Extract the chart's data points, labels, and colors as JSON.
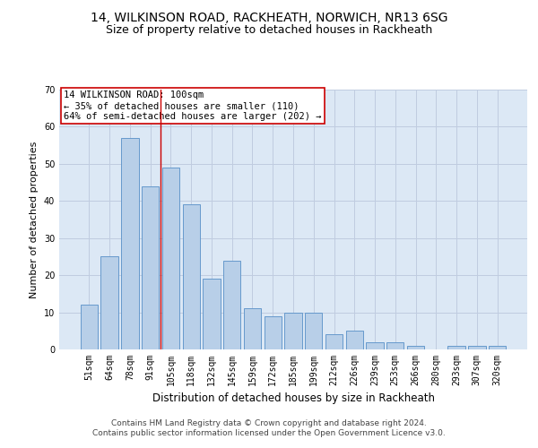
{
  "title": "14, WILKINSON ROAD, RACKHEATH, NORWICH, NR13 6SG",
  "subtitle": "Size of property relative to detached houses in Rackheath",
  "xlabel": "Distribution of detached houses by size in Rackheath",
  "ylabel": "Number of detached properties",
  "categories": [
    "51sqm",
    "64sqm",
    "78sqm",
    "91sqm",
    "105sqm",
    "118sqm",
    "132sqm",
    "145sqm",
    "159sqm",
    "172sqm",
    "185sqm",
    "199sqm",
    "212sqm",
    "226sqm",
    "239sqm",
    "253sqm",
    "266sqm",
    "280sqm",
    "293sqm",
    "307sqm",
    "320sqm"
  ],
  "values": [
    12,
    25,
    57,
    44,
    49,
    39,
    19,
    24,
    11,
    9,
    10,
    10,
    4,
    5,
    2,
    2,
    1,
    0,
    1,
    1,
    1
  ],
  "bar_color": "#b8cfe8",
  "bar_edge_color": "#6699cc",
  "property_line_x": 3.5,
  "property_line_color": "#cc0000",
  "annotation_text": "14 WILKINSON ROAD: 100sqm\n← 35% of detached houses are smaller (110)\n64% of semi-detached houses are larger (202) →",
  "annotation_box_color": "#ffffff",
  "annotation_box_edge": "#cc0000",
  "ylim": [
    0,
    70
  ],
  "yticks": [
    0,
    10,
    20,
    30,
    40,
    50,
    60,
    70
  ],
  "background_color": "#ffffff",
  "plot_bg_color": "#dce8f5",
  "grid_color": "#c0cce0",
  "footer_line1": "Contains HM Land Registry data © Crown copyright and database right 2024.",
  "footer_line2": "Contains public sector information licensed under the Open Government Licence v3.0.",
  "title_fontsize": 10,
  "subtitle_fontsize": 9,
  "xlabel_fontsize": 8.5,
  "ylabel_fontsize": 8,
  "tick_fontsize": 7,
  "annotation_fontsize": 7.5,
  "footer_fontsize": 6.5
}
